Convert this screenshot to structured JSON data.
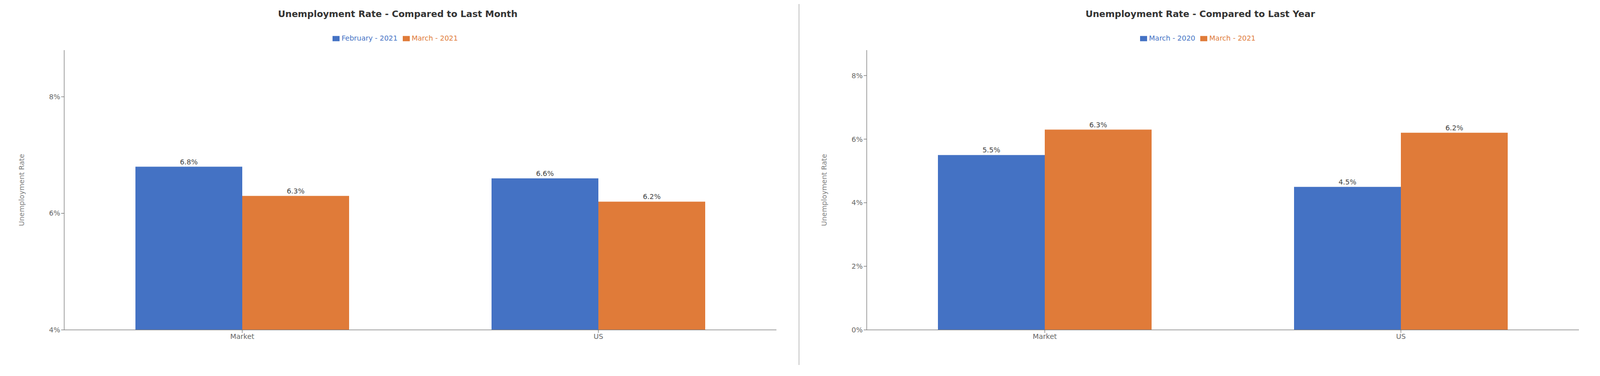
{
  "chart_data": [
    {
      "type": "bar",
      "title": "Unemployment Rate - Compared to Last Month",
      "categories": [
        "Market",
        "US"
      ],
      "series": [
        {
          "name": "February - 2021",
          "color": "#4472C4",
          "values": [
            6.8,
            6.6
          ],
          "value_labels": [
            "6.8%",
            "6.6%"
          ]
        },
        {
          "name": "March - 2021",
          "color": "#E07B39",
          "values": [
            6.3,
            6.2
          ],
          "value_labels": [
            "6.3%",
            "6.2%"
          ]
        }
      ],
      "ylabel": "Unemployment Rate",
      "ylim": [
        4,
        8.8
      ],
      "yticks": [
        {
          "value": 4,
          "label": "4%"
        },
        {
          "value": 6,
          "label": "6%"
        },
        {
          "value": 8,
          "label": "8%"
        }
      ],
      "data_labels": true,
      "grid": false,
      "legend": "top"
    },
    {
      "type": "bar",
      "title": "Unemployment Rate - Compared to Last Year",
      "categories": [
        "Market",
        "US"
      ],
      "series": [
        {
          "name": "March - 2020",
          "color": "#4472C4",
          "values": [
            5.5,
            4.5
          ],
          "value_labels": [
            "5.5%",
            "4.5%"
          ]
        },
        {
          "name": "March - 2021",
          "color": "#E07B39",
          "values": [
            6.3,
            6.2
          ],
          "value_labels": [
            "6.3%",
            "6.2%"
          ]
        }
      ],
      "ylabel": "Unemployment Rate",
      "ylim": [
        0,
        8.8
      ],
      "yticks": [
        {
          "value": 0,
          "label": "0%"
        },
        {
          "value": 2,
          "label": "2%"
        },
        {
          "value": 4,
          "label": "4%"
        },
        {
          "value": 6,
          "label": "6%"
        },
        {
          "value": 8,
          "label": "8%"
        }
      ],
      "data_labels": true,
      "grid": false,
      "legend": "top"
    }
  ]
}
